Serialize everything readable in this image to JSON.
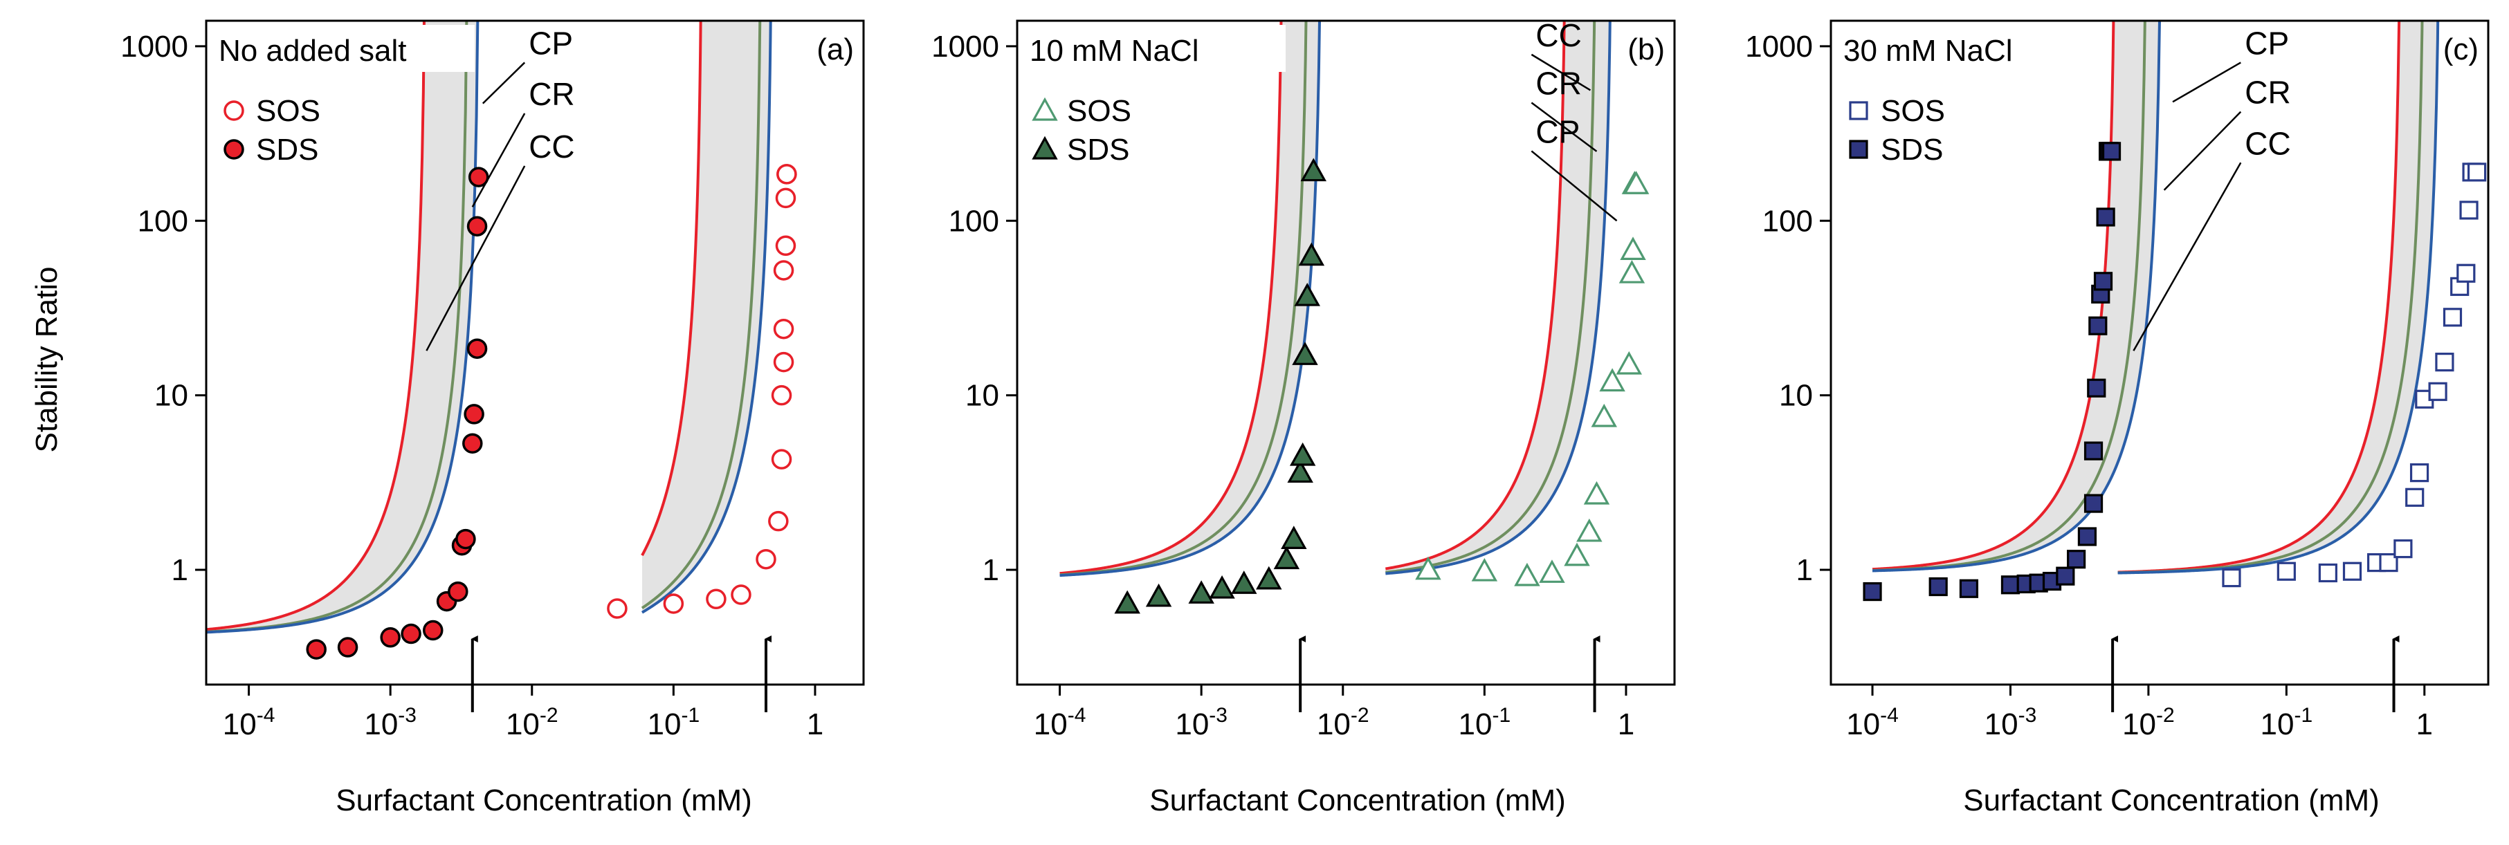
{
  "figure": {
    "ylabel": "Stability Ratio",
    "xlabel": "Surfactant Concentration (mM)"
  },
  "colors": {
    "cp": "#e8202a",
    "cr": "#6f8f5f",
    "cc": "#2a5ea8",
    "band": "#e3e3e3",
    "sos_red": "#e8202a",
    "sds_red": "#e8202a",
    "sos_green": "#4f9a72",
    "sds_green": "#3a6e4a",
    "sos_blue": "#2a3c8a",
    "sds_blue": "#2f3680"
  },
  "chart_data": [
    {
      "type": "scatter",
      "panel_label": "(a)",
      "legend_title": "No added salt",
      "xscale": "log",
      "yscale": "log",
      "xlim": [
        5e-05,
        2.2
      ],
      "ylim": [
        0.22,
        1400
      ],
      "xticks": [
        {
          "v": 0.0001,
          "base": "10",
          "exp": "-4"
        },
        {
          "v": 0.001,
          "base": "10",
          "exp": "-3"
        },
        {
          "v": 0.01,
          "base": "10",
          "exp": "-2"
        },
        {
          "v": 0.1,
          "base": "10",
          "exp": "-1"
        },
        {
          "v": 1,
          "base": "1",
          "exp": ""
        }
      ],
      "yticks": [
        {
          "v": 1,
          "label": "1"
        },
        {
          "v": 10,
          "label": "10"
        },
        {
          "v": 100,
          "label": "100"
        },
        {
          "v": 1000,
          "label": "1000"
        }
      ],
      "show_ylabels": true,
      "series": [
        {
          "name": "SOS",
          "marker": "circle",
          "filled": false,
          "color_key": "sos_red",
          "x": [
            0.04,
            0.1,
            0.2,
            0.3,
            0.45,
            0.55,
            0.58,
            0.58,
            0.6,
            0.6,
            0.6,
            0.62,
            0.62,
            0.63,
            0.63
          ],
          "y": [
            0.6,
            0.64,
            0.68,
            0.72,
            1.15,
            1.9,
            4.3,
            10,
            15.5,
            24,
            52,
            72,
            135,
            185,
            185
          ]
        },
        {
          "name": "SDS",
          "marker": "circle",
          "filled": true,
          "color_key": "sds_red",
          "x": [
            0.0003,
            0.0005,
            0.001,
            0.0014,
            0.002,
            0.0025,
            0.003,
            0.0032,
            0.0034,
            0.0038,
            0.0039,
            0.0041,
            0.0041,
            0.0042
          ],
          "y": [
            0.35,
            0.36,
            0.41,
            0.43,
            0.45,
            0.66,
            0.75,
            1.38,
            1.5,
            5.3,
            7.8,
            18.5,
            93,
            178
          ]
        }
      ],
      "curves": [
        {
          "name": "low",
          "x0": 1e-05,
          "x1": 0.0068,
          "base_lo": 0.42,
          "base_hi": 0.45,
          "cp": 0.00178,
          "cr": 0.00355,
          "cc": 0.00425
        },
        {
          "name": "high",
          "x0": 0.06,
          "x1": 2.0,
          "base_lo": 0.43,
          "base_hi": 0.7,
          "cp": 0.16,
          "cr": 0.42,
          "cc": 0.5
        }
      ],
      "annotations": [
        {
          "text": "CP",
          "x": 0.0095,
          "y": 900,
          "line_to": [
            0.0045,
            470
          ]
        },
        {
          "text": "CR",
          "x": 0.0095,
          "y": 460,
          "line_to": [
            0.0038,
            120
          ]
        },
        {
          "text": "CC",
          "x": 0.0095,
          "y": 230,
          "line_to": [
            0.0018,
            18
          ]
        }
      ],
      "arrows": [
        0.0038,
        0.45
      ],
      "legend": [
        "SOS",
        "SDS"
      ]
    },
    {
      "type": "scatter",
      "panel_label": "(b)",
      "legend_title": "10 mM NaCl",
      "xscale": "log",
      "yscale": "log",
      "xlim": [
        5e-05,
        2.2
      ],
      "ylim": [
        0.22,
        1400
      ],
      "xticks": [
        {
          "v": 0.0001,
          "base": "10",
          "exp": "-4"
        },
        {
          "v": 0.001,
          "base": "10",
          "exp": "-3"
        },
        {
          "v": 0.01,
          "base": "10",
          "exp": "-2"
        },
        {
          "v": 0.1,
          "base": "10",
          "exp": "-1"
        },
        {
          "v": 1,
          "base": "1",
          "exp": ""
        }
      ],
      "yticks": [
        {
          "v": 1,
          "label": "1"
        },
        {
          "v": 10,
          "label": "10"
        },
        {
          "v": 100,
          "label": "100"
        },
        {
          "v": 1000,
          "label": "1000"
        }
      ],
      "show_ylabels": true,
      "series": [
        {
          "name": "SOS",
          "marker": "triangle",
          "filled": false,
          "color_key": "sos_green",
          "x": [
            0.04,
            0.1,
            0.2,
            0.3,
            0.45,
            0.55,
            0.62,
            0.7,
            0.8,
            1.05,
            1.1,
            1.12,
            1.15,
            1.18
          ],
          "y": [
            1.0,
            0.98,
            0.92,
            0.96,
            1.2,
            1.65,
            2.7,
            7.5,
            12,
            15,
            50,
            68,
            162,
            162
          ]
        },
        {
          "name": "SDS",
          "marker": "triangle",
          "filled": true,
          "color_key": "sds_green",
          "x": [
            0.0003,
            0.0005,
            0.001,
            0.0014,
            0.002,
            0.003,
            0.004,
            0.0045,
            0.005,
            0.0052,
            0.0054,
            0.0056,
            0.006,
            0.0062
          ],
          "y": [
            0.64,
            0.7,
            0.73,
            0.78,
            0.83,
            0.88,
            1.15,
            1.5,
            3.6,
            4.5,
            17,
            37,
            63,
            192
          ]
        }
      ],
      "curves": [
        {
          "name": "low",
          "x0": 0.0001,
          "x1": 0.0095,
          "base_lo": 0.9,
          "base_hi": 0.95,
          "cp": 0.0038,
          "cr": 0.0057,
          "cc": 0.0071
        },
        {
          "name": "high",
          "x0": 0.02,
          "x1": 2.0,
          "base_lo": 0.9,
          "base_hi": 0.95,
          "cp": 0.38,
          "cr": 0.62,
          "cc": 0.8
        }
      ],
      "annotations": [
        {
          "text": "CC",
          "x": 0.23,
          "y": 1000,
          "line_to": [
            0.56,
            560
          ]
        },
        {
          "text": "CR",
          "x": 0.23,
          "y": 530,
          "line_to": [
            0.62,
            250
          ]
        },
        {
          "text": "CP",
          "x": 0.23,
          "y": 280,
          "line_to": [
            0.86,
            100
          ]
        }
      ],
      "arrows": [
        0.005,
        0.6
      ],
      "legend": [
        "SOS",
        "SDS"
      ]
    },
    {
      "type": "scatter",
      "panel_label": "(c)",
      "legend_title": "30 mM NaCl",
      "xscale": "log",
      "yscale": "log",
      "xlim": [
        5e-05,
        2.9
      ],
      "ylim": [
        0.22,
        1400
      ],
      "xticks": [
        {
          "v": 0.0001,
          "base": "10",
          "exp": "-4"
        },
        {
          "v": 0.001,
          "base": "10",
          "exp": "-3"
        },
        {
          "v": 0.01,
          "base": "10",
          "exp": "-2"
        },
        {
          "v": 0.1,
          "base": "10",
          "exp": "-1"
        },
        {
          "v": 1,
          "base": "1",
          "exp": ""
        }
      ],
      "yticks": [
        {
          "v": 1,
          "label": "1"
        },
        {
          "v": 10,
          "label": "10"
        },
        {
          "v": 100,
          "label": "100"
        },
        {
          "v": 1000,
          "label": "1000"
        }
      ],
      "show_ylabels": true,
      "series": [
        {
          "name": "SOS",
          "marker": "square",
          "filled": false,
          "color_key": "sos_blue",
          "x": [
            0.04,
            0.1,
            0.2,
            0.3,
            0.45,
            0.55,
            0.7,
            0.85,
            0.92,
            1.0,
            1.25,
            1.4,
            1.6,
            1.8,
            2.0,
            2.1,
            2.2,
            2.4
          ],
          "y": [
            0.9,
            0.98,
            0.96,
            0.98,
            1.1,
            1.1,
            1.32,
            2.6,
            3.6,
            9.5,
            10.5,
            15.5,
            28,
            42,
            50,
            115,
            190,
            190
          ]
        },
        {
          "name": "SDS",
          "marker": "square",
          "filled": true,
          "color_key": "sds_blue",
          "x": [
            0.0001,
            0.0003,
            0.0005,
            0.001,
            0.0013,
            0.0016,
            0.002,
            0.0025,
            0.003,
            0.0036,
            0.004,
            0.004,
            0.0042,
            0.0043,
            0.0045,
            0.0047,
            0.0049,
            0.0051,
            0.0052,
            0.0054
          ],
          "y": [
            0.75,
            0.8,
            0.78,
            0.82,
            0.83,
            0.84,
            0.86,
            0.92,
            1.15,
            1.55,
            2.4,
            4.8,
            11,
            25,
            38,
            45,
            105,
            250,
            250,
            250
          ]
        }
      ],
      "curves": [
        {
          "name": "low",
          "x0": 0.0001,
          "x1": 0.018,
          "base_lo": 0.97,
          "base_hi": 0.98,
          "cp": 0.0058,
          "cr": 0.0098,
          "cc": 0.0125
        },
        {
          "name": "high",
          "x0": 0.006,
          "x1": 2.8,
          "base_lo": 0.95,
          "base_hi": 0.97,
          "cp": 0.68,
          "cr": 1.0,
          "cc": 1.3
        }
      ],
      "annotations": [
        {
          "text": "CP",
          "x": 0.05,
          "y": 900,
          "line_to": [
            0.015,
            480
          ]
        },
        {
          "text": "CR",
          "x": 0.05,
          "y": 470,
          "line_to": [
            0.013,
            150
          ]
        },
        {
          "text": "CC",
          "x": 0.05,
          "y": 240,
          "line_to": [
            0.0078,
            18
          ]
        }
      ],
      "arrows": [
        0.0055,
        0.6
      ],
      "legend": [
        "SOS",
        "SDS"
      ]
    }
  ]
}
